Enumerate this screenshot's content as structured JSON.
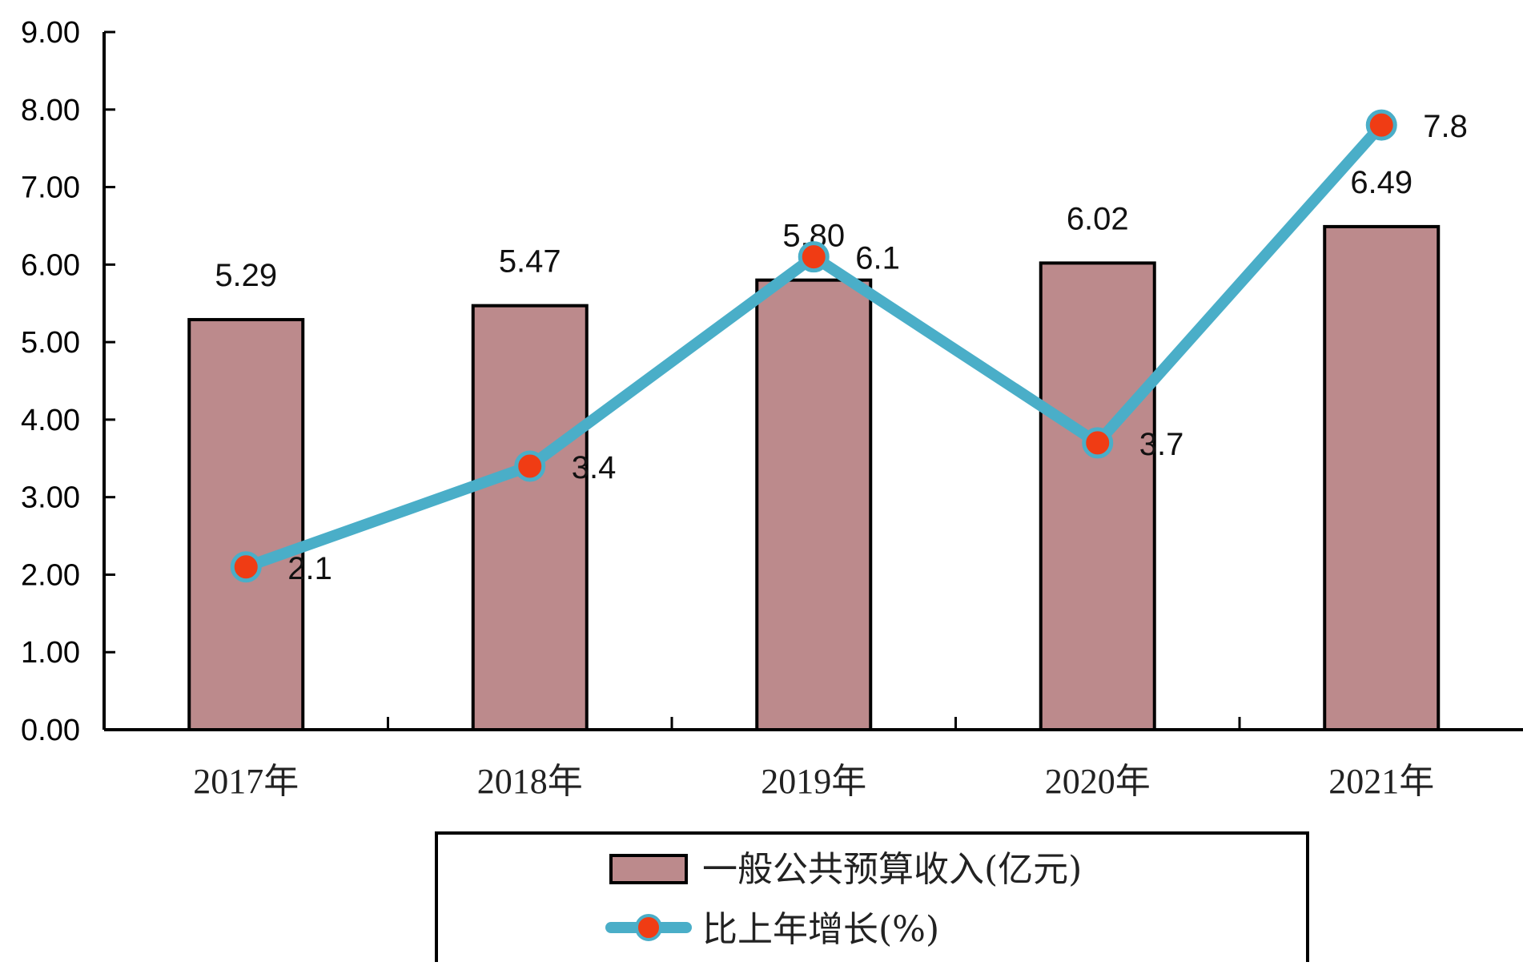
{
  "chart_data": {
    "type": "bar",
    "categories": [
      "2017年",
      "2018年",
      "2019年",
      "2020年",
      "2021年"
    ],
    "ylim": [
      0,
      9
    ],
    "yticks": [
      "0.00",
      "1.00",
      "2.00",
      "3.00",
      "4.00",
      "5.00",
      "6.00",
      "7.00",
      "8.00",
      "9.00"
    ],
    "grid": false,
    "legend_position": "bottom-center",
    "series": [
      {
        "name": "一般公共预算收入(亿元)",
        "type": "bar",
        "values": [
          5.29,
          5.47,
          5.8,
          6.02,
          6.49
        ],
        "labels": [
          "5.29",
          "5.47",
          "5.80",
          "6.02",
          "6.49"
        ],
        "color": "#bc8a8c"
      },
      {
        "name": "比上年增长(%)",
        "type": "line",
        "values": [
          2.1,
          3.4,
          6.1,
          3.7,
          7.8
        ],
        "labels": [
          "2.1",
          "3.4",
          "6.1",
          "3.7",
          "7.8"
        ],
        "color": "#4aaec8",
        "marker_color": "#f03c14"
      }
    ]
  }
}
